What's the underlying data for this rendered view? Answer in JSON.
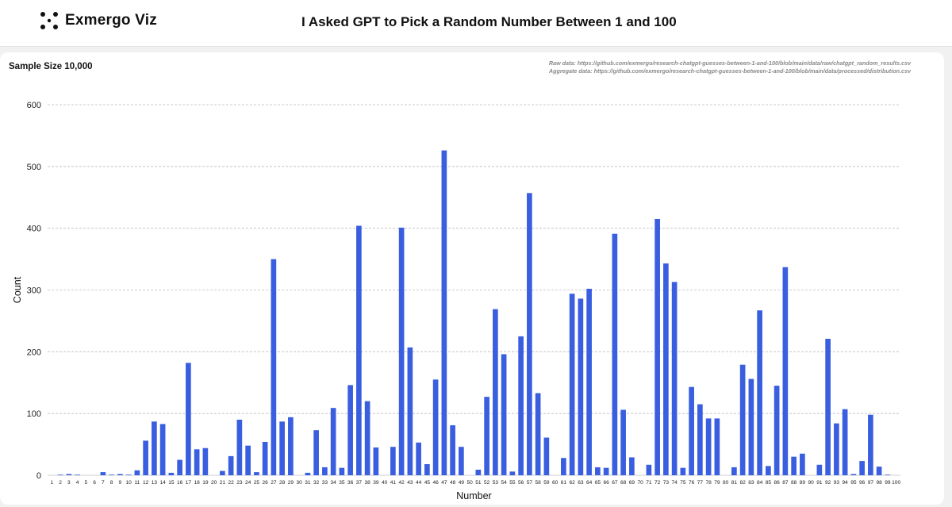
{
  "header": {
    "brand_name": "Exmergo Viz",
    "title": "I Asked GPT to Pick a Random Number Between 1 and 100"
  },
  "card": {
    "sample_size": "Sample Size 10,000",
    "raw_data_text": "Raw data: https://github.com/exmergo/research-chatgpt-guesses-between-1-and-100/blob/main/data/raw/chatgpt_random_results.csv",
    "aggregate_data_text": "Aggregate data: https://github.com/exmergo/research-chatgpt-guesses-between-1-and-100/blob/main/data/processed/distribution.csv"
  },
  "colors": {
    "bar": "#3a5ee0",
    "grid": "#bdbdbd"
  },
  "chart_data": {
    "type": "bar",
    "title": "",
    "xlabel": "Number",
    "ylabel": "Count",
    "ylim": [
      0,
      600
    ],
    "yticks": [
      0,
      100,
      200,
      300,
      400,
      500,
      600
    ],
    "grid": true,
    "categories": [
      "1",
      "2",
      "3",
      "4",
      "5",
      "6",
      "7",
      "8",
      "9",
      "10",
      "11",
      "12",
      "13",
      "14",
      "15",
      "16",
      "17",
      "18",
      "19",
      "20",
      "21",
      "22",
      "23",
      "24",
      "25",
      "26",
      "27",
      "28",
      "29",
      "30",
      "31",
      "32",
      "33",
      "34",
      "35",
      "36",
      "37",
      "38",
      "39",
      "40",
      "41",
      "42",
      "43",
      "44",
      "45",
      "46",
      "47",
      "48",
      "49",
      "50",
      "51",
      "52",
      "53",
      "54",
      "55",
      "56",
      "57",
      "58",
      "59",
      "60",
      "61",
      "62",
      "63",
      "64",
      "65",
      "66",
      "67",
      "68",
      "69",
      "70",
      "71",
      "72",
      "73",
      "74",
      "75",
      "76",
      "77",
      "78",
      "79",
      "80",
      "81",
      "82",
      "83",
      "84",
      "85",
      "86",
      "87",
      "88",
      "89",
      "90",
      "91",
      "92",
      "93",
      "94",
      "95",
      "96",
      "97",
      "98",
      "99",
      "100"
    ],
    "values": [
      0,
      1,
      2,
      1,
      0,
      0,
      5,
      1,
      2,
      1,
      8,
      56,
      87,
      83,
      4,
      25,
      182,
      42,
      44,
      0,
      7,
      31,
      90,
      48,
      5,
      54,
      350,
      87,
      94,
      0,
      4,
      73,
      13,
      109,
      12,
      146,
      404,
      120,
      45,
      0,
      46,
      401,
      207,
      53,
      18,
      155,
      526,
      81,
      46,
      0,
      9,
      127,
      269,
      196,
      6,
      225,
      457,
      133,
      61,
      0,
      28,
      294,
      286,
      302,
      13,
      12,
      391,
      106,
      29,
      0,
      17,
      415,
      343,
      313,
      12,
      143,
      115,
      92,
      92,
      0,
      13,
      179,
      156,
      267,
      15,
      145,
      337,
      30,
      35,
      0,
      17,
      221,
      84,
      107,
      2,
      23,
      98,
      14,
      1,
      0
    ]
  }
}
